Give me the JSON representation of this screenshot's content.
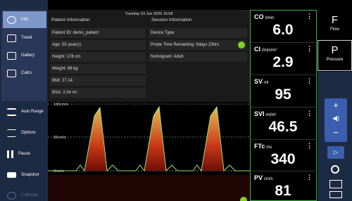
{
  "menu": {
    "top": [
      "Info",
      "Trend",
      "Gallery",
      "Calcs"
    ],
    "bottom": [
      "Auto Range",
      "Options",
      "Pause",
      "Snapshot",
      "Calibrate"
    ]
  },
  "header": {
    "datetime": "Tuesday 03 Jun 2025 16:58"
  },
  "patient": {
    "title": "Patient Information",
    "rows": [
      "Patient ID: demo_patient",
      "Age: 55 year(s)",
      "Height: 178 cm",
      "Weight: 86 kg",
      "BMI: 27.14",
      "BSA: 2.04 m²"
    ]
  },
  "session": {
    "title": "Session Information",
    "rows": [
      "Device Type:",
      "Probe Time Remaining: 9days 23hrs",
      "Nomogram: Adult"
    ]
  },
  "doppler": {
    "scale": [
      "100cm/s",
      "50cm/s",
      "0cm/s"
    ]
  },
  "parameters": [
    {
      "name": "CO",
      "unit": "l/min",
      "value": "6.0"
    },
    {
      "name": "CI",
      "unit": "l/min/m²",
      "value": "2.9"
    },
    {
      "name": "SV",
      "unit": "ml",
      "value": "95"
    },
    {
      "name": "SVI",
      "unit": "ml/m²",
      "value": "46.5"
    },
    {
      "name": "FTc",
      "unit": "ms",
      "value": "340"
    },
    {
      "name": "PV",
      "unit": "cm/s",
      "value": "81"
    }
  ],
  "modes": [
    {
      "letter": "F",
      "label": "Flow"
    },
    {
      "letter": "P",
      "label": "Pressure"
    }
  ]
}
